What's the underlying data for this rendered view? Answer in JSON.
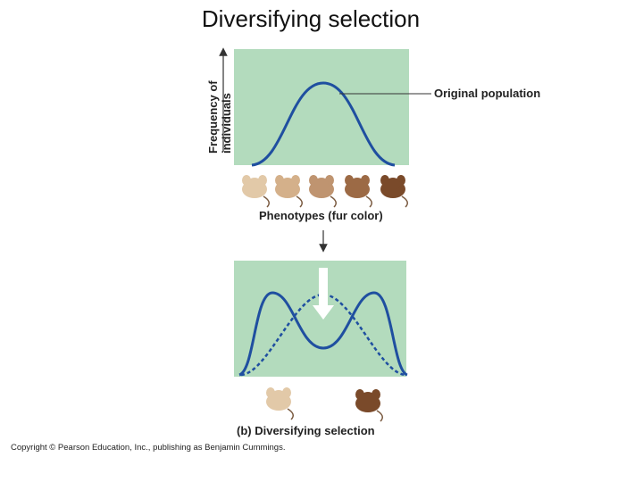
{
  "title": "Diversifying selection",
  "top_panel": {
    "axis_label_line1": "Frequency of",
    "axis_label_line2": "individuals",
    "curve_label": "Original population",
    "x_label": "Phenotypes (fur color)"
  },
  "bottom_panel": {
    "caption": "(b) Diversifying selection"
  },
  "copyright": "Copyright © Pearson Education, Inc., publishing as Benjamin Cummings."
}
